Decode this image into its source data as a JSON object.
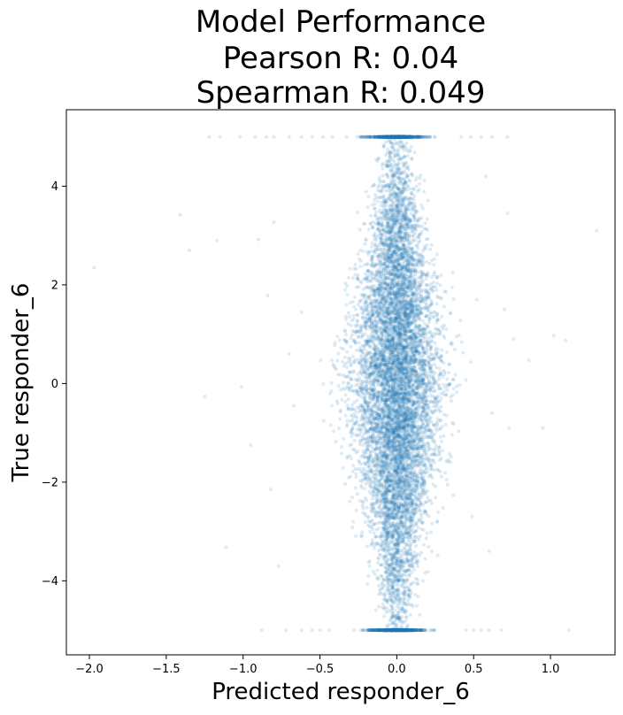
{
  "chart_data": {
    "type": "scatter",
    "title_lines": [
      "Model Performance",
      "Pearson R: 0.04",
      "Spearman R: 0.049"
    ],
    "xlabel": "Predicted responder_6",
    "ylabel": "True responder_6",
    "xlim": [
      -2.15,
      1.42
    ],
    "ylim": [
      -5.5,
      5.55
    ],
    "x_ticks": [
      -2.0,
      -1.5,
      -1.0,
      -0.5,
      0.0,
      0.5,
      1.0
    ],
    "x_tick_labels": [
      "−2.0",
      "−1.5",
      "−1.0",
      "−0.5",
      "0.0",
      "0.5",
      "1.0"
    ],
    "y_ticks": [
      -4,
      -2,
      0,
      2,
      4
    ],
    "y_tick_labels": [
      "−4",
      "−2",
      "0",
      "2",
      "4"
    ],
    "grid": false,
    "legend": "none",
    "series_color": "#1f77b4",
    "point_alpha": 0.15,
    "pearson_r": 0.04,
    "spearman_r": 0.049,
    "clip_bounds": [
      -5,
      5
    ],
    "distribution": {
      "x_center": 0.0,
      "x_spread_at_center": 0.14,
      "x_spread_at_bounds": 0.03,
      "y_range": [
        -5,
        5
      ]
    },
    "outlier_points": [
      {
        "x": -1.97,
        "y": 2.35
      },
      {
        "x": -1.41,
        "y": 3.42
      },
      {
        "x": -1.35,
        "y": 2.7
      },
      {
        "x": -1.17,
        "y": 2.9
      },
      {
        "x": -1.25,
        "y": -0.27
      },
      {
        "x": -1.01,
        "y": -0.07
      },
      {
        "x": -0.84,
        "y": 1.78
      },
      {
        "x": -0.8,
        "y": 3.27
      },
      {
        "x": -0.9,
        "y": 2.92
      },
      {
        "x": -0.95,
        "y": -1.25
      },
      {
        "x": -0.82,
        "y": -2.15
      },
      {
        "x": -0.77,
        "y": -3.7
      },
      {
        "x": -1.11,
        "y": -3.32
      },
      {
        "x": -0.62,
        "y": 1.45
      },
      {
        "x": -0.7,
        "y": 0.6
      },
      {
        "x": -0.67,
        "y": -0.45
      },
      {
        "x": 0.72,
        "y": 3.45
      },
      {
        "x": 0.76,
        "y": 0.9
      },
      {
        "x": 0.62,
        "y": -0.6
      },
      {
        "x": 0.73,
        "y": -0.9
      },
      {
        "x": 0.95,
        "y": -0.9
      },
      {
        "x": 1.02,
        "y": 0.97
      },
      {
        "x": 1.1,
        "y": 0.87
      },
      {
        "x": 1.3,
        "y": 3.1
      },
      {
        "x": 0.86,
        "y": 0.47
      },
      {
        "x": 0.58,
        "y": 4.2
      },
      {
        "x": 0.52,
        "y": 1.7
      },
      {
        "x": 0.7,
        "y": 1.5
      },
      {
        "x": 0.49,
        "y": -2.7
      },
      {
        "x": 0.6,
        "y": -3.4
      }
    ],
    "boundary_band_points": {
      "top_x": [
        -1.22,
        -1.15,
        -1.02,
        -0.92,
        -0.85,
        -0.8,
        -0.7,
        -0.62,
        -0.55,
        -0.48,
        -0.42,
        0.42,
        0.48,
        0.55,
        0.62,
        0.72
      ],
      "bottom_x": [
        -0.88,
        -0.72,
        -0.62,
        -0.55,
        -0.5,
        -0.44,
        0.45,
        0.5,
        0.55,
        0.6,
        0.68,
        1.12
      ]
    }
  }
}
